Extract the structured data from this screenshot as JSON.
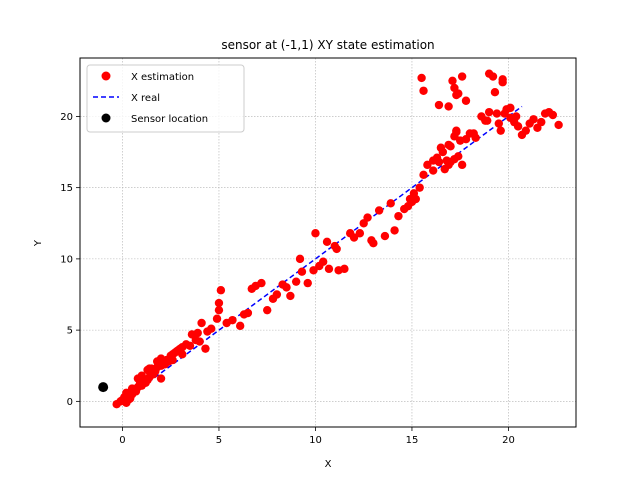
{
  "chart_data": {
    "type": "scatter",
    "title": "sensor at (-1,1) XY state estimation",
    "xlabel": "X",
    "ylabel": "Y",
    "xlim": [
      -2.2,
      23.5
    ],
    "ylim": [
      -1.8,
      24.1
    ],
    "xticks": [
      0,
      5,
      10,
      15,
      20
    ],
    "yticks": [
      0,
      5,
      10,
      15,
      20
    ],
    "grid": true,
    "legend_position": "top-left",
    "colors": {
      "estimation": "#ff0000",
      "real": "#0000ff",
      "sensor": "#000000"
    },
    "series": [
      {
        "name": "X estimation",
        "kind": "points",
        "x": [
          -0.3,
          -0.1,
          0.0,
          0.1,
          0.2,
          0.3,
          0.4,
          0.2,
          0.5,
          0.6,
          0.3,
          0.7,
          0.8,
          0.5,
          0.9,
          1.0,
          1.1,
          0.8,
          1.2,
          1.3,
          1.0,
          1.4,
          1.5,
          1.6,
          1.3,
          1.7,
          1.8,
          1.5,
          1.9,
          2.0,
          2.1,
          1.8,
          2.2,
          2.3,
          2.0,
          2.4,
          2.5,
          2.6,
          2.3,
          2.7,
          2.8,
          2.5,
          2.9,
          3.0,
          3.1,
          3.3,
          3.5,
          3.8,
          4.0,
          0.9,
          1.4,
          2.0,
          2.6,
          3.1,
          3.6,
          3.9,
          4.1,
          4.3,
          4.4,
          4.6,
          4.9,
          5.0,
          5.1,
          5.4,
          5.7,
          6.1,
          6.3,
          6.5,
          6.7,
          6.9,
          7.2,
          7.5,
          7.8,
          8.0,
          8.3,
          8.5,
          8.7,
          9.0,
          9.2,
          9.3,
          9.6,
          9.9,
          10.0,
          10.2,
          10.4,
          10.6,
          10.7,
          11.0,
          11.2,
          11.5,
          11.8,
          12.0,
          12.3,
          12.5,
          12.7,
          12.9,
          13.0,
          13.3,
          13.6,
          13.9,
          14.1,
          14.3,
          14.6,
          14.8,
          15.0,
          15.2,
          15.4,
          15.6,
          15.8,
          16.1,
          16.3,
          16.5,
          16.7,
          16.9,
          17.0,
          17.2,
          17.4,
          17.6,
          15.6,
          15.5,
          16.4,
          16.9,
          17.1,
          17.3,
          17.6,
          17.8,
          18.0,
          18.3,
          18.6,
          18.8,
          19.0,
          19.3,
          19.5,
          19.7,
          19.9,
          20.1,
          20.3,
          20.5,
          20.7,
          20.9,
          21.1,
          21.3,
          21.5,
          21.7,
          21.9,
          22.1,
          22.3,
          22.6,
          19.0,
          19.2,
          19.7,
          19.8,
          17.2,
          17.4,
          17.3,
          15.1,
          14.9,
          16.1,
          5.0,
          11.1,
          17.3,
          17.8,
          18.2,
          19.6,
          20.1,
          20.4,
          19.4,
          18.9,
          16.4,
          16.6,
          16.8,
          17.0,
          17.2,
          16.9,
          17.5
        ],
        "y": [
          -0.2,
          0.0,
          0.1,
          0.3,
          -0.1,
          0.4,
          0.2,
          0.6,
          0.5,
          0.8,
          0.1,
          0.7,
          1.0,
          0.9,
          1.2,
          1.1,
          1.4,
          1.6,
          1.3,
          1.5,
          1.8,
          1.7,
          2.0,
          1.9,
          2.2,
          2.1,
          2.4,
          2.3,
          2.6,
          2.5,
          2.7,
          2.8,
          2.6,
          2.9,
          3.0,
          2.8,
          3.1,
          3.3,
          2.9,
          3.4,
          3.5,
          3.2,
          3.6,
          3.7,
          3.8,
          4.0,
          3.9,
          4.3,
          4.2,
          1.5,
          2.3,
          1.6,
          2.9,
          3.3,
          4.7,
          4.8,
          5.5,
          3.7,
          4.9,
          5.1,
          5.8,
          6.9,
          7.8,
          5.5,
          5.7,
          5.3,
          6.1,
          6.2,
          7.9,
          8.1,
          8.3,
          6.4,
          7.2,
          7.5,
          8.2,
          8.0,
          7.4,
          8.4,
          10.0,
          9.1,
          8.3,
          9.2,
          11.8,
          9.5,
          9.8,
          11.2,
          9.3,
          10.9,
          9.2,
          9.3,
          11.8,
          11.5,
          11.8,
          12.5,
          12.9,
          11.3,
          11.1,
          13.4,
          11.6,
          13.9,
          12.0,
          13.0,
          13.5,
          13.7,
          14.0,
          14.2,
          15.0,
          15.9,
          16.6,
          16.9,
          17.1,
          17.8,
          16.3,
          16.6,
          16.8,
          17.0,
          17.2,
          16.6,
          21.8,
          22.7,
          20.8,
          20.7,
          22.5,
          21.5,
          22.8,
          21.1,
          18.8,
          18.5,
          20.0,
          19.7,
          20.3,
          21.7,
          19.5,
          22.6,
          20.5,
          19.9,
          19.6,
          19.3,
          18.7,
          19.0,
          19.5,
          19.8,
          19.2,
          19.6,
          20.2,
          20.3,
          20.1,
          19.4,
          23.0,
          22.8,
          22.4,
          20.2,
          22.0,
          21.6,
          18.9,
          14.6,
          14.2,
          16.2,
          6.4,
          10.7,
          19.0,
          18.4,
          18.8,
          19.0,
          20.6,
          20.0,
          20.2,
          19.7,
          16.8,
          17.5,
          16.9,
          17.9,
          18.6,
          18.0,
          18.3
        ]
      },
      {
        "name": "X real",
        "kind": "dashed-line",
        "x": [
          0,
          20.7
        ],
        "y": [
          0,
          20.7
        ]
      },
      {
        "name": "Sensor location",
        "kind": "points",
        "x": [
          -1
        ],
        "y": [
          1
        ]
      }
    ]
  }
}
